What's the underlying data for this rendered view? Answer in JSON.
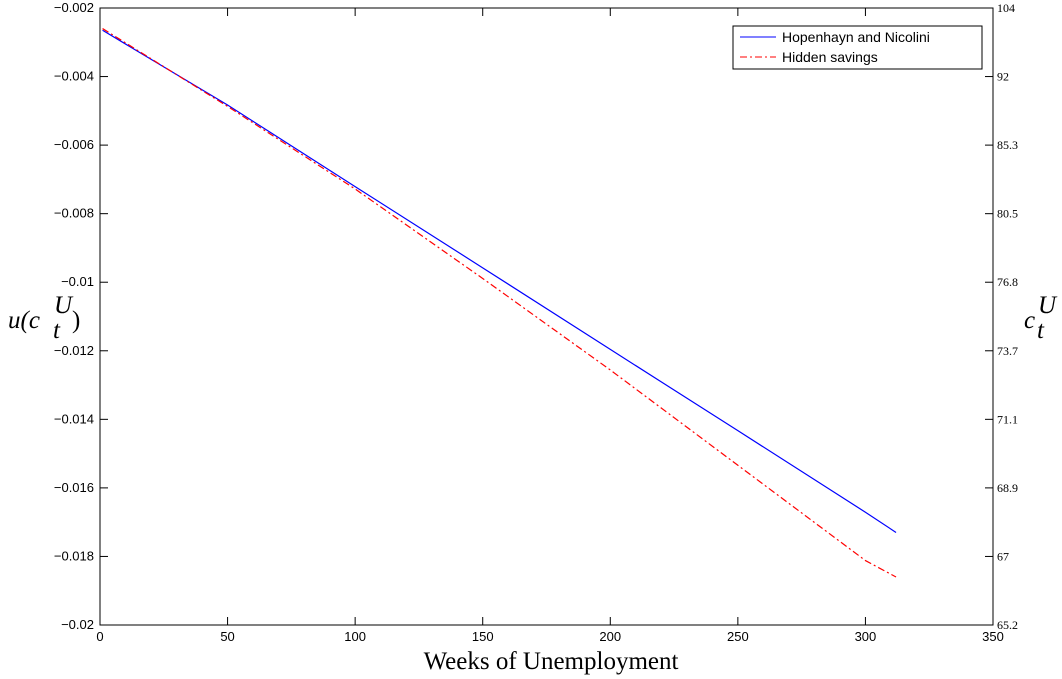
{
  "chart_data": {
    "type": "line",
    "xlabel": "Weeks of Unemployment",
    "ylabel_left": "u(c_t^U)",
    "ylabel_right": "c_t^U",
    "xlim": [
      0,
      350
    ],
    "ylim_left": [
      -0.02,
      -0.002
    ],
    "x_ticks": [
      0,
      50,
      100,
      150,
      200,
      250,
      300,
      350
    ],
    "x_tick_labels": [
      "0",
      "50",
      "100",
      "150",
      "200",
      "250",
      "300",
      "350"
    ],
    "y_ticks_left": [
      -0.002,
      -0.004,
      -0.006,
      -0.008,
      -0.01,
      -0.012,
      -0.014,
      -0.016,
      -0.018,
      -0.02
    ],
    "y_tick_labels_left": [
      "−0.002",
      "−0.004",
      "−0.006",
      "−0.008",
      "−0.01",
      "−0.012",
      "−0.014",
      "−0.016",
      "−0.018",
      "−0.02"
    ],
    "y_tick_labels_right": [
      "104",
      "92",
      "85.3",
      "80.5",
      "76.8",
      "73.7",
      "71.1",
      "68.9",
      "67",
      "65.2"
    ],
    "grid": false,
    "legend_position": "top-right",
    "series": [
      {
        "name": "Hopenhayn and Nicolini",
        "color": "#0000ff",
        "line_style": "solid",
        "x": [
          1,
          50,
          100,
          150,
          200,
          250,
          300,
          312
        ],
        "y": [
          -0.00265,
          -0.00483,
          -0.00721,
          -0.00958,
          -0.01196,
          -0.01433,
          -0.01671,
          -0.0173
        ]
      },
      {
        "name": "Hidden savings",
        "color": "#ff0000",
        "line_style": "dash-dot",
        "x": [
          1,
          50,
          100,
          150,
          200,
          250,
          300,
          312
        ],
        "y": [
          -0.0026,
          -0.00487,
          -0.00728,
          -0.00989,
          -0.01256,
          -0.01534,
          -0.01812,
          -0.0186
        ]
      }
    ]
  }
}
